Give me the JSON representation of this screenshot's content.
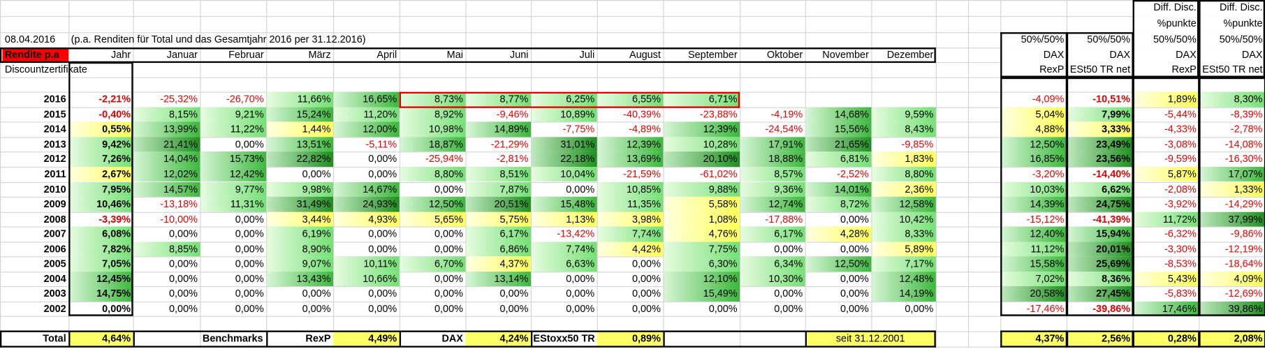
{
  "date": "08.04.2016",
  "note": "(p.a. Renditen für Total und das Gesamtjahr 2016 per 31.12.2016)",
  "row_header": "Rendite p.a",
  "columns": [
    "Jahr",
    "Januar",
    "Februar",
    "März",
    "April",
    "Mai",
    "Juni",
    "Juli",
    "August",
    "September",
    "Oktober",
    "November",
    "Dezember"
  ],
  "section": "Discountzertifikate",
  "right_columns": [
    {
      "lines": [
        "50%/50%",
        "DAX",
        "RexP"
      ]
    },
    {
      "lines": [
        "50%/50%",
        "DAX",
        "ESt50 TR net"
      ]
    },
    {
      "lines": [
        "Diff. Disc.",
        "%punkte",
        "50%/50%",
        "DAX",
        "RexP"
      ]
    },
    {
      "lines": [
        "Diff. Disc.",
        "%punkte",
        "50%/50%",
        "DAX",
        "ESt50 TR net"
      ]
    }
  ],
  "rows": [
    {
      "year": 2016,
      "values": [
        "-2,21%",
        "-25,32%",
        "-26,70%",
        "11,66%",
        "16,65%",
        "8,73%",
        "8,77%",
        "6,25%",
        "6,55%",
        "6,71%",
        null,
        null,
        null
      ],
      "benchmarks": [
        "-4,09%",
        "-10,51%",
        "1,89%",
        "8,30%"
      ]
    },
    {
      "year": 2015,
      "values": [
        "-0,40%",
        "8,15%",
        "9,21%",
        "15,24%",
        "11,20%",
        "8,92%",
        "-9,46%",
        "10,89%",
        "-40,39%",
        "-23,88%",
        "-4,19%",
        "14,68%",
        "9,59%"
      ],
      "benchmarks": [
        "5,04%",
        "7,99%",
        "-5,44%",
        "-8,39%"
      ]
    },
    {
      "year": 2014,
      "values": [
        "0,55%",
        "13,99%",
        "11,22%",
        "1,44%",
        "12,00%",
        "10,98%",
        "14,89%",
        "-7,75%",
        "-4,89%",
        "12,39%",
        "-24,54%",
        "15,56%",
        "8,43%"
      ],
      "benchmarks": [
        "4,88%",
        "3,33%",
        "-4,33%",
        "-2,78%"
      ]
    },
    {
      "year": 2013,
      "values": [
        "9,42%",
        "21,41%",
        "0,00%",
        "13,51%",
        "-5,11%",
        "18,87%",
        "-21,29%",
        "31,01%",
        "12,39%",
        "10,28%",
        "17,91%",
        "21,65%",
        "-9,85%"
      ],
      "benchmarks": [
        "12,50%",
        "23,49%",
        "-3,08%",
        "-14,08%"
      ]
    },
    {
      "year": 2012,
      "values": [
        "7,26%",
        "14,04%",
        "15,73%",
        "22,82%",
        "0,00%",
        "-25,94%",
        "-2,81%",
        "22,18%",
        "13,69%",
        "20,10%",
        "18,88%",
        "6,81%",
        "1,83%"
      ],
      "benchmarks": [
        "16,85%",
        "23,56%",
        "-9,59%",
        "-16,30%"
      ]
    },
    {
      "year": 2011,
      "values": [
        "2,67%",
        "12,02%",
        "12,42%",
        "0,00%",
        "0,00%",
        "8,80%",
        "8,51%",
        "10,04%",
        "-21,59%",
        "-61,02%",
        "8,57%",
        "-2,52%",
        "8,80%"
      ],
      "benchmarks": [
        "-3,20%",
        "-14,40%",
        "5,87%",
        "17,07%"
      ]
    },
    {
      "year": 2010,
      "values": [
        "7,95%",
        "14,57%",
        "9,77%",
        "9,98%",
        "14,67%",
        "0,00%",
        "7,87%",
        "0,00%",
        "10,85%",
        "9,88%",
        "9,36%",
        "14,01%",
        "2,36%"
      ],
      "benchmarks": [
        "10,03%",
        "6,62%",
        "-2,08%",
        "1,33%"
      ]
    },
    {
      "year": 2009,
      "values": [
        "10,46%",
        "-13,18%",
        "11,31%",
        "31,49%",
        "24,93%",
        "12,50%",
        "20,51%",
        "15,48%",
        "11,35%",
        "5,58%",
        "12,74%",
        "8,72%",
        "12,58%"
      ],
      "benchmarks": [
        "14,39%",
        "24,75%",
        "-3,92%",
        "-14,29%"
      ]
    },
    {
      "year": 2008,
      "values": [
        "-3,39%",
        "-10,00%",
        "0,00%",
        "3,44%",
        "4,93%",
        "5,65%",
        "5,75%",
        "1,13%",
        "3,98%",
        "1,08%",
        "-17,88%",
        "0,00%",
        "10,42%"
      ],
      "benchmarks": [
        "-15,12%",
        "-41,39%",
        "11,72%",
        "37,99%"
      ]
    },
    {
      "year": 2007,
      "values": [
        "6,08%",
        "0,00%",
        "0,00%",
        "6,19%",
        "0,00%",
        "0,00%",
        "6,17%",
        "-13,42%",
        "7,74%",
        "4,76%",
        "6,17%",
        "4,28%",
        "8,33%"
      ],
      "benchmarks": [
        "12,40%",
        "15,94%",
        "-6,32%",
        "-9,86%"
      ]
    },
    {
      "year": 2006,
      "values": [
        "7,82%",
        "8,85%",
        "0,00%",
        "8,90%",
        "0,00%",
        "0,00%",
        "6,86%",
        "7,74%",
        "4,42%",
        "7,75%",
        "0,00%",
        "0,00%",
        "5,89%"
      ],
      "benchmarks": [
        "11,12%",
        "20,01%",
        "-3,30%",
        "-12,19%"
      ]
    },
    {
      "year": 2005,
      "values": [
        "7,05%",
        "0,00%",
        "0,00%",
        "9,07%",
        "10,11%",
        "6,70%",
        "4,37%",
        "6,63%",
        "0,00%",
        "6,30%",
        "6,34%",
        "12,50%",
        "7,17%"
      ],
      "benchmarks": [
        "15,58%",
        "25,69%",
        "-8,53%",
        "-18,64%"
      ]
    },
    {
      "year": 2004,
      "values": [
        "12,45%",
        "0,00%",
        "0,00%",
        "13,43%",
        "10,66%",
        "0,00%",
        "13,14%",
        "0,00%",
        "0,00%",
        "12,10%",
        "10,30%",
        "0,00%",
        "12,48%"
      ],
      "benchmarks": [
        "7,02%",
        "8,36%",
        "5,43%",
        "4,09%"
      ]
    },
    {
      "year": 2003,
      "values": [
        "14,75%",
        "0,00%",
        "0,00%",
        "0,00%",
        "0,00%",
        "0,00%",
        "0,00%",
        "0,00%",
        "0,00%",
        "15,49%",
        "0,00%",
        "0,00%",
        "14,19%"
      ],
      "benchmarks": [
        "20,58%",
        "27,45%",
        "-5,83%",
        "-12,69%"
      ]
    },
    {
      "year": 2002,
      "values": [
        "0,00%",
        "0,00%",
        "0,00%",
        "0,00%",
        "0,00%",
        "0,00%",
        "0,00%",
        "0,00%",
        "0,00%",
        "0,00%",
        "0,00%",
        "0,00%",
        "0,00%"
      ],
      "benchmarks": [
        "-17,46%",
        "-39,86%",
        "17,46%",
        "39,86%"
      ]
    }
  ],
  "total": {
    "label": "Total",
    "value": "4,64%",
    "benchmarks_label": "Benchmarks",
    "items": [
      {
        "name": "RexP",
        "value": "4,49%"
      },
      {
        "name": "DAX",
        "value": "4,24%"
      },
      {
        "name": "EStoxx50 TR",
        "value": "0,89%"
      }
    ],
    "since": "seit 31.12.2001",
    "benchmarks": [
      "4,37%",
      "2,56%",
      "0,28%",
      "2,08%"
    ]
  }
}
